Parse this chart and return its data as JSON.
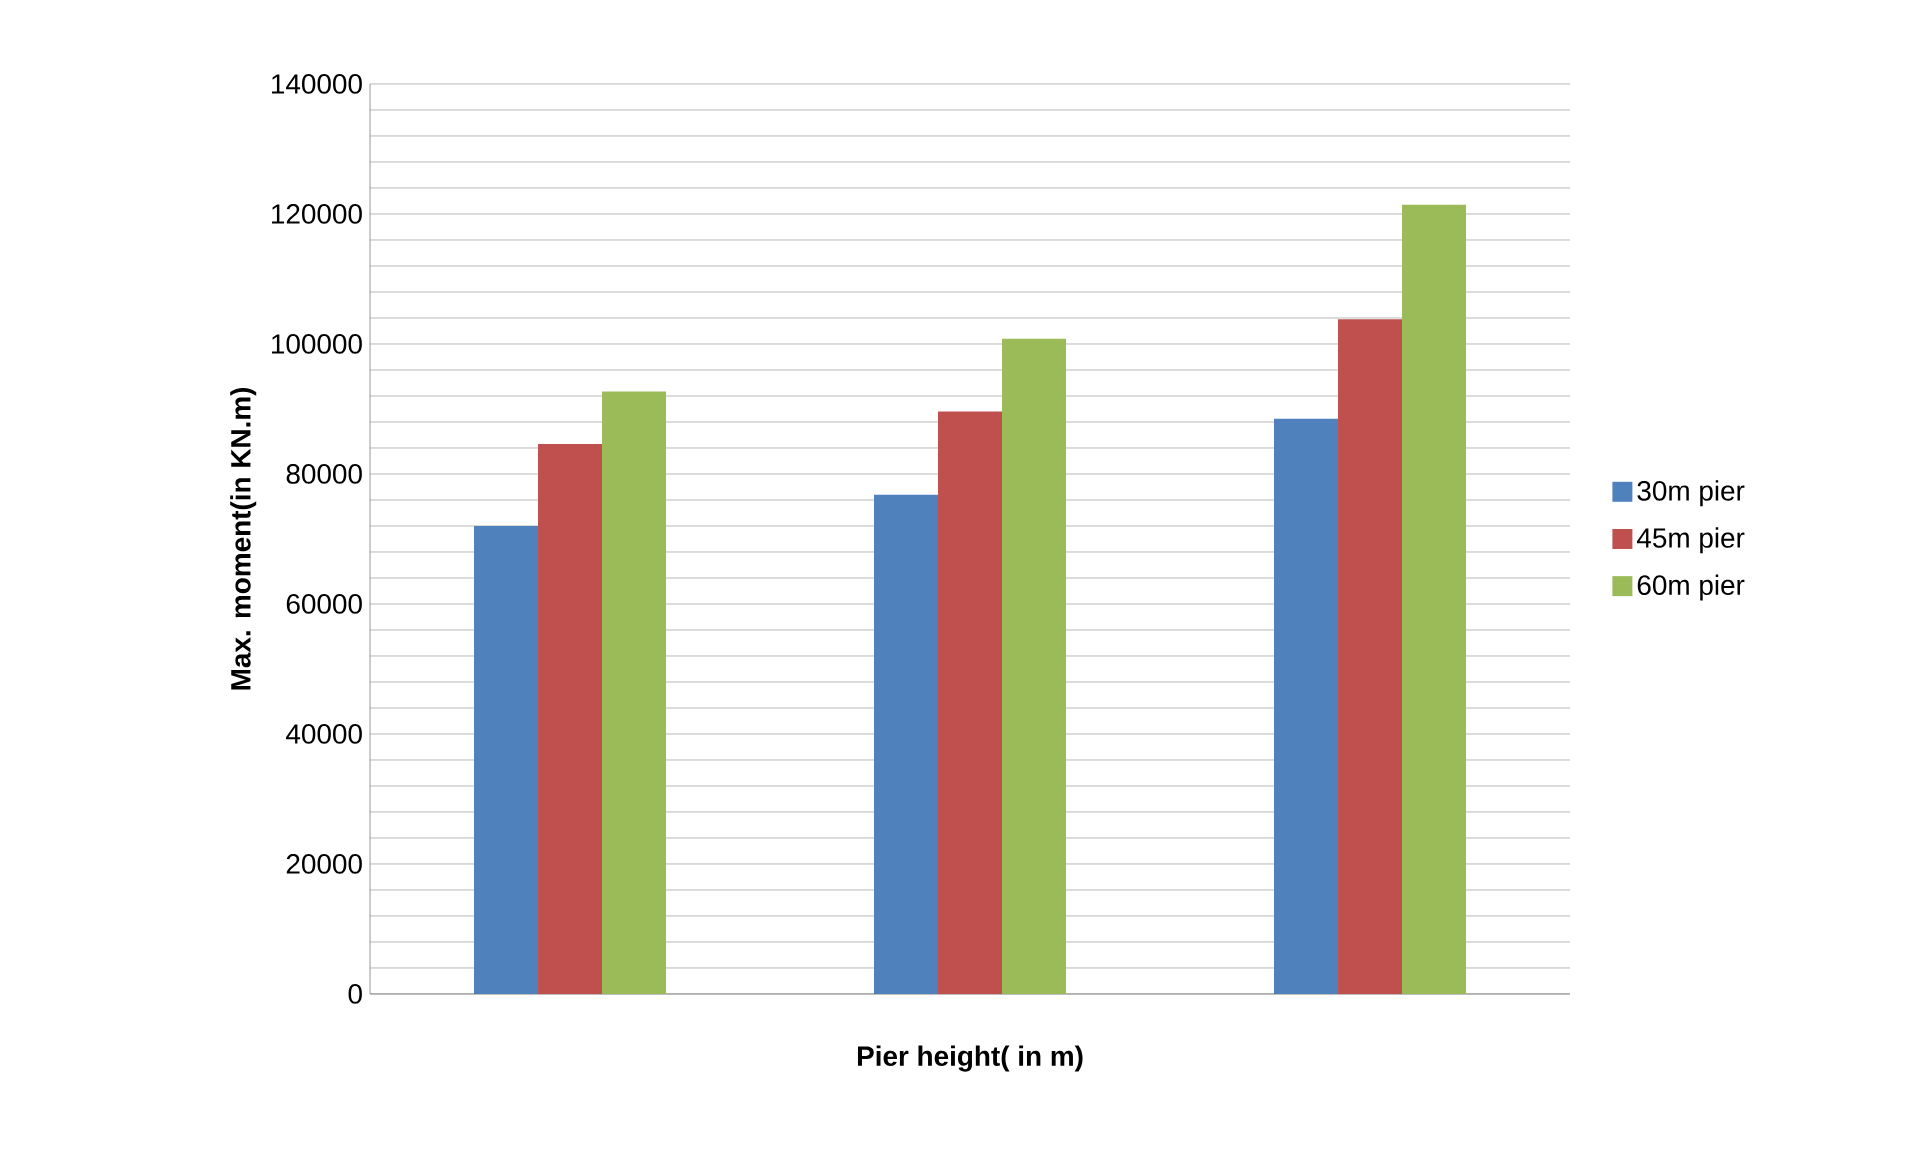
{
  "chart_data": {
    "type": "bar",
    "xlabel": "Pier height( in m)",
    "ylabel": "Max. moment(in KN.m)",
    "categories": [
      null,
      null,
      null
    ],
    "series": [
      {
        "name": "30m pier",
        "color": "#4f81bd",
        "values": [
          72000,
          76800,
          88500
        ]
      },
      {
        "name": "45m pier",
        "color": "#c0504d",
        "values": [
          84600,
          89600,
          103800
        ]
      },
      {
        "name": "60m pier",
        "color": "#9bbb59",
        "values": [
          92700,
          100800,
          121400
        ]
      }
    ],
    "ylim": [
      0,
      140000
    ],
    "yticks": [
      0,
      {
        "value": 4000,
        "label": null
      },
      {
        "value": 8000,
        "label": null
      },
      {
        "value": 12000,
        "label": null
      },
      {
        "value": 16000,
        "label": null
      },
      20000,
      {
        "value": 24000,
        "label": null
      },
      {
        "value": 28000,
        "label": null
      },
      {
        "value": 32000,
        "label": null
      },
      {
        "value": 36000,
        "label": null
      },
      40000,
      {
        "value": 44000,
        "label": null
      },
      {
        "value": 48000,
        "label": null
      },
      {
        "value": 52000,
        "label": null
      },
      {
        "value": 56000,
        "label": null
      },
      60000,
      {
        "value": 64000,
        "label": null
      },
      {
        "value": 68000,
        "label": null
      },
      {
        "value": 72000,
        "label": null
      },
      {
        "value": 76000,
        "label": null
      },
      80000,
      {
        "value": 84000,
        "label": null
      },
      {
        "value": 88000,
        "label": null
      },
      {
        "value": 92000,
        "label": null
      },
      {
        "value": 96000,
        "label": null
      },
      100000,
      {
        "value": 104000,
        "label": null
      },
      {
        "value": 108000,
        "label": null
      },
      {
        "value": 112000,
        "label": null
      },
      {
        "value": 116000,
        "label": null
      },
      120000,
      {
        "value": 124000,
        "label": null
      },
      {
        "value": 128000,
        "label": null
      },
      {
        "value": 132000,
        "label": null
      },
      {
        "value": 136000,
        "label": null
      },
      140000
    ],
    "grid": true,
    "legend": "right"
  }
}
